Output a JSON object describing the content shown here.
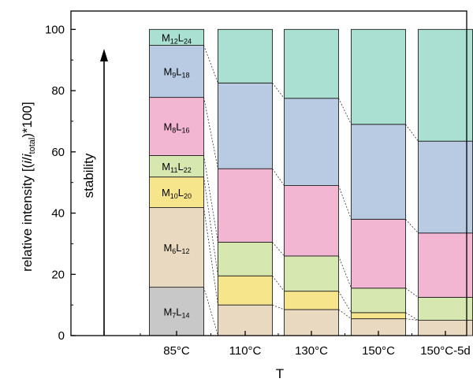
{
  "chart_data": {
    "type": "bar",
    "stacked": true,
    "xlabel": "T",
    "ylabel": "relative intensity [(i/i_total)*100]",
    "ylim": [
      0,
      106
    ],
    "yticks": [
      0,
      20,
      40,
      60,
      80,
      100
    ],
    "categories": [
      "85°C",
      "110°C",
      "130°C",
      "150°C",
      "150°C-5d"
    ],
    "annotation": "stability",
    "series": [
      {
        "name": "M7L14",
        "label_base": "M",
        "sub1": "7",
        "label_mid": "L",
        "sub2": "14",
        "color": "#c8c8c8",
        "values": [
          15.8,
          0,
          0,
          0,
          0
        ]
      },
      {
        "name": "M6L12",
        "label_base": "M",
        "sub1": "6",
        "label_mid": "L",
        "sub2": "12",
        "color": "#ead9c1",
        "values": [
          26.0,
          10.0,
          8.5,
          5.5,
          5.0
        ]
      },
      {
        "name": "M10L20",
        "label_base": "M",
        "sub1": "10",
        "label_mid": "L",
        "sub2": "20",
        "color": "#f7e58c",
        "values": [
          10.0,
          9.5,
          6.0,
          2.0,
          0
        ]
      },
      {
        "name": "M11L22",
        "label_base": "M",
        "sub1": "11",
        "label_mid": "L",
        "sub2": "22",
        "color": "#d6e8b0",
        "values": [
          7.0,
          11.0,
          11.5,
          8.0,
          7.5
        ]
      },
      {
        "name": "M8L16",
        "label_base": "M",
        "sub1": "8",
        "label_mid": "L",
        "sub2": "16",
        "color": "#f2b6d3",
        "values": [
          19.0,
          24.0,
          23.0,
          22.5,
          21.0
        ]
      },
      {
        "name": "M9L18",
        "label_base": "M",
        "sub1": "9",
        "label_mid": "L",
        "sub2": "18",
        "color": "#b8cbe3",
        "values": [
          17.0,
          28.0,
          28.5,
          31.0,
          30.0
        ]
      },
      {
        "name": "M12L24",
        "label_base": "M",
        "sub1": "12",
        "label_mid": "L",
        "sub2": "24",
        "color": "#a9e0d1",
        "values": [
          5.2,
          17.5,
          22.5,
          31.0,
          36.5
        ]
      }
    ]
  },
  "ui": {
    "ylabel_prefix": "relative intensity [(",
    "ylabel_i": "i",
    "ylabel_slash": "/",
    "ylabel_i2": "i",
    "ylabel_sub": "total",
    "ylabel_suffix": ")*100]"
  }
}
